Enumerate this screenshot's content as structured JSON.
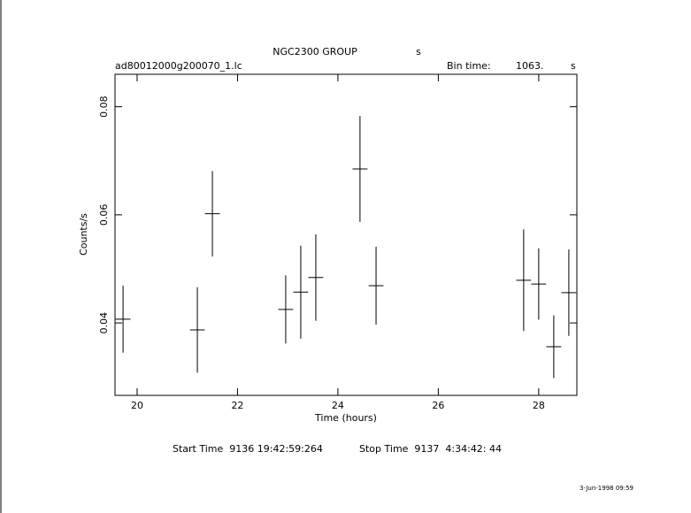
{
  "chart_data": {
    "type": "errorbar",
    "title": "NGC2300 GROUP",
    "title_unit": "s",
    "subtitle": "ad80012000g200070_1.lc",
    "bin_time_label": "Bin time:",
    "bin_time": "1063.",
    "bin_time_unit": "s",
    "xlabel": "Time (hours)",
    "ylabel": "Counts/s",
    "color": "#000000",
    "x": [
      19.72,
      21.2,
      21.5,
      22.96,
      23.26,
      23.56,
      24.44,
      24.76,
      27.7,
      28.0,
      28.3,
      28.6
    ],
    "xerr": [
      0.148,
      0.148,
      0.148,
      0.148,
      0.148,
      0.148,
      0.148,
      0.148,
      0.148,
      0.148,
      0.148,
      0.148
    ],
    "values": [
      0.0407,
      0.0387,
      0.0602,
      0.0425,
      0.0457,
      0.0484,
      0.0685,
      0.0469,
      0.0479,
      0.0472,
      0.0356,
      0.0456
    ],
    "yerr": [
      0.0062,
      0.0079,
      0.0079,
      0.0063,
      0.0086,
      0.008,
      0.0098,
      0.0072,
      0.0094,
      0.0066,
      0.0058,
      0.008
    ],
    "xlim": [
      19.56,
      28.76
    ],
    "ylim": [
      0.0266,
      0.086
    ],
    "xticks": [
      20,
      22,
      24,
      26,
      28
    ],
    "yticks": [
      0.04,
      0.06,
      0.08
    ],
    "start_time": "Start Time  9136 19:42:59:264",
    "stop_time": "Stop Time  9137  4:34:42: 44",
    "timestamp": "3-Jun-1998 09:59"
  }
}
